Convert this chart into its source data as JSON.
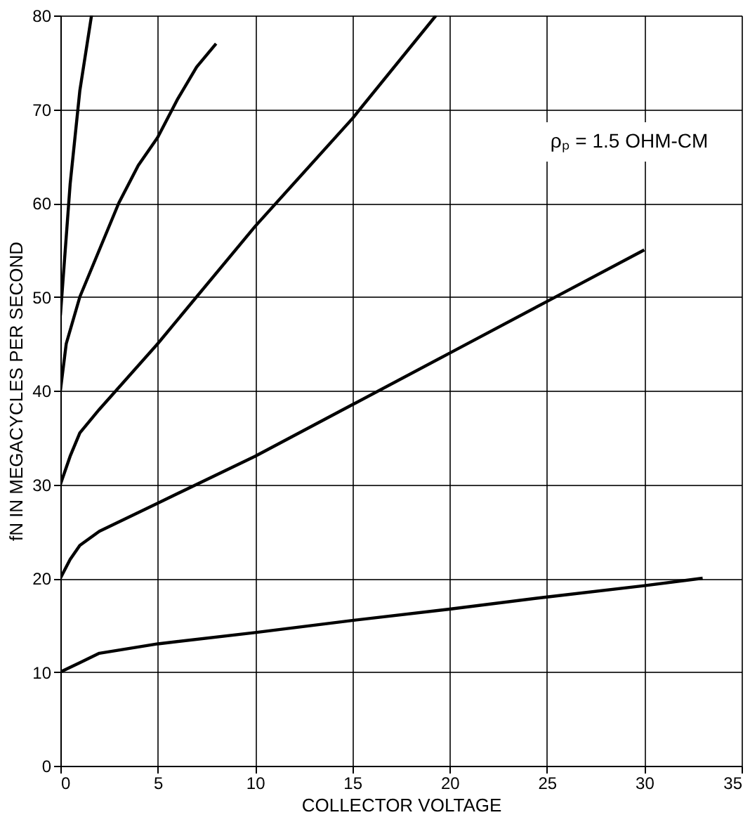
{
  "chart_data": {
    "type": "line",
    "xlabel": "COLLECTOR VOLTAGE",
    "ylabel": "fN IN MEGACYCLES PER SECOND",
    "annotations": [
      "ρₚ = 1.5 OHM-CM"
    ],
    "xlim": [
      0,
      35
    ],
    "xticks": [
      0,
      5,
      10,
      15,
      20,
      25,
      30,
      35
    ],
    "ylim": [
      0,
      80
    ],
    "yticks": [
      0,
      10,
      20,
      30,
      40,
      50,
      60,
      70,
      80
    ],
    "grid": true,
    "marker": "none",
    "line_style": "solid",
    "series": [
      {
        "color": "#000000",
        "x": [
          0,
          1,
          2,
          5,
          10,
          15,
          20,
          25,
          30,
          33
        ],
        "values": [
          10,
          11,
          12,
          13,
          14.2,
          15.5,
          16.7,
          18,
          19.2,
          20
        ]
      },
      {
        "color": "#000000",
        "x": [
          0,
          0.5,
          1,
          2,
          5,
          10,
          15,
          20,
          25,
          30
        ],
        "values": [
          20,
          22,
          23.5,
          25,
          28,
          33,
          38.5,
          44,
          49.5,
          55
        ]
      },
      {
        "color": "#000000",
        "x": [
          0,
          0.5,
          1,
          2,
          5,
          10,
          15,
          19.3
        ],
        "values": [
          30,
          33,
          35.5,
          38,
          45,
          57.5,
          69,
          80
        ]
      },
      {
        "color": "#000000",
        "x": [
          0,
          0.3,
          1,
          2,
          3,
          4,
          5,
          6,
          7,
          8
        ],
        "values": [
          40,
          45,
          50,
          55,
          60,
          64,
          67,
          71,
          74.5,
          77
        ]
      },
      {
        "color": "#000000",
        "x": [
          0,
          0.5,
          1,
          1.6
        ],
        "values": [
          48,
          62,
          72,
          80
        ]
      }
    ]
  }
}
